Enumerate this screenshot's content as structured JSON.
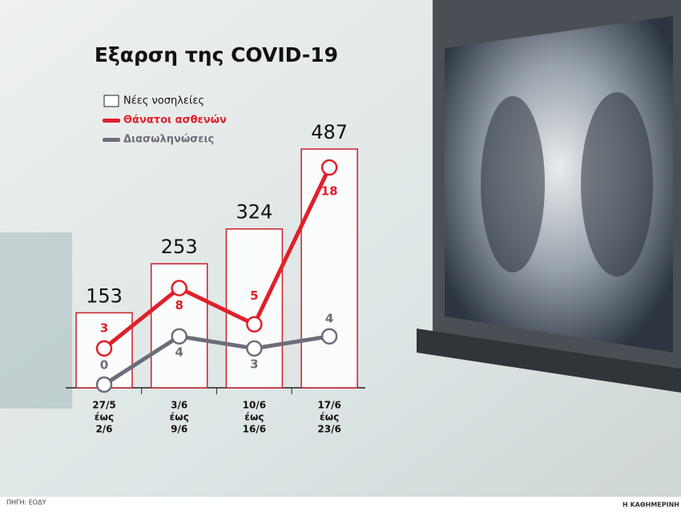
{
  "chart_data": {
    "type": "bar-line",
    "title": "Εξαρση της COVID-19",
    "categories": [
      [
        "27/5",
        "έως",
        "2/6"
      ],
      [
        "3/6",
        "έως",
        "9/6"
      ],
      [
        "10/6",
        "έως",
        "16/6"
      ],
      [
        "17/6",
        "έως",
        "23/6"
      ]
    ],
    "series": [
      {
        "name": "Νέες νοσηλείες",
        "type": "bar",
        "color": "#ffffff",
        "border": "#c8202a",
        "values": [
          153,
          253,
          324,
          487
        ]
      },
      {
        "name": "Θάνατοι ασθενών",
        "type": "line",
        "color": "#e0202a",
        "values": [
          3,
          8,
          5,
          18
        ]
      },
      {
        "name": "Διασωληνώσεις",
        "type": "line",
        "color": "#6d6d7a",
        "values": [
          0,
          4,
          3,
          4
        ]
      }
    ],
    "source": "ΠΗΓΗ: ΕΟΔΥ",
    "publisher": "Η ΚΑΘΗΜΕΡΙΝΗ"
  }
}
